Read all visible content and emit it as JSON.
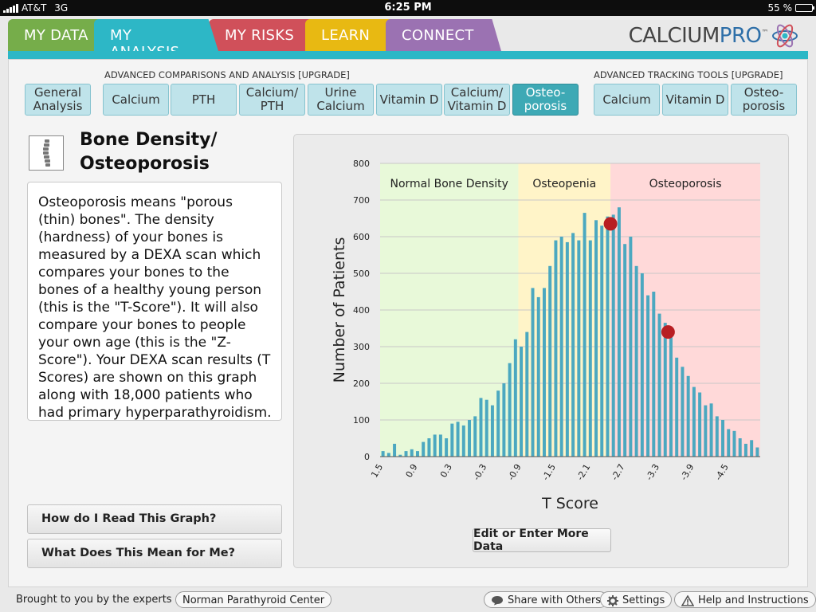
{
  "status_bar": {
    "carrier": "AT&T",
    "network": "3G",
    "time": "6:25 PM",
    "battery": "55 %",
    "battery_level": 0.55
  },
  "tabs": [
    {
      "label": "MY DATA",
      "color": "#76ad4a"
    },
    {
      "label": "MY ANALYSIS",
      "color": "#2db7c6",
      "active": true
    },
    {
      "label": "MY RISKS",
      "color": "#d0505a"
    },
    {
      "label": "LEARN",
      "color": "#e8b912"
    },
    {
      "label": "CONNECT",
      "color": "#9b72b2"
    }
  ],
  "logo": {
    "text_a": "CALCIUM",
    "text_b": "PRO",
    "tm": "™"
  },
  "analysis": {
    "group_label": "ADVANCED COMPARISONS AND ANALYSIS [UPGRADE]",
    "buttons": [
      {
        "line1": "General",
        "line2": "Analysis"
      },
      {
        "line1": "Calcium",
        "line2": ""
      },
      {
        "line1": "PTH",
        "line2": ""
      },
      {
        "line1": "Calcium/",
        "line2": "PTH"
      },
      {
        "line1": "Urine",
        "line2": "Calcium"
      },
      {
        "line1": "Vitamin D",
        "line2": ""
      },
      {
        "line1": "Calcium/",
        "line2": "Vitamin D"
      },
      {
        "line1": "Osteo-",
        "line2": "porosis",
        "active": true
      }
    ]
  },
  "tracking": {
    "group_label": "ADVANCED TRACKING TOOLS [UPGRADE]",
    "buttons": [
      {
        "line1": "Calcium",
        "line2": ""
      },
      {
        "line1": "Vitamin D",
        "line2": ""
      },
      {
        "line1": "Osteo-",
        "line2": "porosis"
      }
    ]
  },
  "topic": {
    "icon": "spine-icon",
    "title_line1": "Bone Density/",
    "title_line2": "Osteoporosis",
    "description": "Osteoporosis means \"porous (thin) bones\".  The density (hardness) of your bones is measured by a DEXA scan which compares your bones to the bones of a healthy young person (this is the \"T-Score\"). It will also compare your bones to people your own age (this is the \"Z-Score\"). Your DEXA scan results (T Scores) are shown on this graph along with 18,000 patients who had primary hyperparathyroidism."
  },
  "questions": {
    "read_graph": "How do I Read This Graph?",
    "meaning": "What Does This Mean for Me?"
  },
  "edit_button": "Edit or Enter More Data",
  "footer": {
    "brought": "Brought to you by the experts at",
    "center": "Norman Parathyroid Center",
    "share": "Share with Others",
    "settings": "Settings",
    "help": "Help and Instructions"
  },
  "chart_data": {
    "type": "bar",
    "xlabel": "T Score",
    "ylabel": "Number of Patients",
    "ylim": [
      0,
      800
    ],
    "yticks": [
      0,
      100,
      200,
      300,
      400,
      500,
      600,
      700,
      800
    ],
    "xlim": [
      1.5,
      -5.1
    ],
    "xticks": [
      "1.5",
      "0.9",
      "0.3",
      "-0.3",
      "-0.9",
      "-1.5",
      "-2.1",
      "-2.7",
      "-3.3",
      "-3.9",
      "-4.5"
    ],
    "bins_start": 1.5,
    "bin_width": -0.1,
    "values": [
      15,
      10,
      35,
      5,
      15,
      20,
      15,
      40,
      50,
      60,
      60,
      50,
      90,
      95,
      85,
      100,
      110,
      160,
      155,
      140,
      180,
      200,
      255,
      320,
      300,
      340,
      460,
      435,
      460,
      520,
      590,
      600,
      585,
      610,
      590,
      665,
      590,
      645,
      630,
      655,
      660,
      680,
      580,
      600,
      520,
      500,
      440,
      450,
      390,
      365,
      345,
      270,
      245,
      220,
      190,
      175,
      140,
      145,
      110,
      100,
      75,
      70,
      50,
      35,
      45,
      25
    ],
    "regions": [
      {
        "label": "Normal Bone Density",
        "from": 1.5,
        "to": -0.9,
        "color": "#e8f9d9"
      },
      {
        "label": "Osteopenia",
        "from": -0.9,
        "to": -2.5,
        "color": "#fff4c8"
      },
      {
        "label": "Osteoporosis",
        "from": -2.5,
        "to": -5.1,
        "color": "#ffd9d9"
      }
    ],
    "patient_points": [
      {
        "t_score": -2.5,
        "count": 635
      },
      {
        "t_score": -3.5,
        "count": 340
      }
    ],
    "bar_color": "#4ba8c0",
    "point_color": "#b81e22",
    "grid": true
  }
}
